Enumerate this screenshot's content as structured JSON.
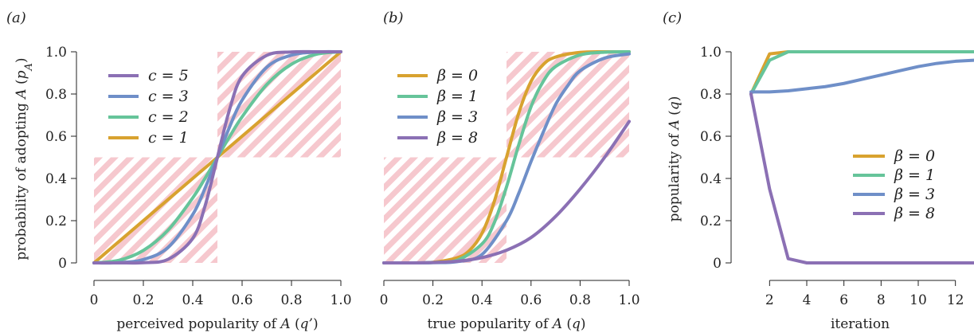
{
  "colors": {
    "c5": "#8b70b4",
    "c3": "#6f8fc8",
    "c2": "#66c49a",
    "c1": "#d8a22f",
    "hatch": "#f2b5bd"
  },
  "chart_data": [
    {
      "panel_label": "(a)",
      "type": "line",
      "xlabel": "perceived popularity of A (q’)",
      "ylabel": "probability of adopting A (p_A)",
      "xlim": [
        0,
        1
      ],
      "ylim": [
        0,
        1
      ],
      "xticks": [
        0,
        0.2,
        0.4,
        0.6,
        0.8,
        1.0
      ],
      "xtick_labels": [
        "0",
        "0.2",
        "0.4",
        "0.6",
        "0.8",
        "1.0"
      ],
      "yticks": [
        0,
        0.2,
        0.4,
        0.6,
        0.8,
        1.0
      ],
      "ytick_labels": [
        "0",
        "0.2",
        "0.4",
        "0.6",
        "0.8",
        "1.0"
      ],
      "legend_position": "top-left",
      "hatched_regions": [
        {
          "x_from": 0.0,
          "x_to": 0.5,
          "y_from": 0.0,
          "y_to": 0.5
        },
        {
          "x_from": 0.5,
          "x_to": 1.0,
          "y_from": 0.5,
          "y_to": 1.0
        }
      ],
      "series": [
        {
          "name": "c = 5",
          "color_key": "c5",
          "x": [
            0,
            0.1,
            0.2,
            0.3,
            0.4,
            0.45,
            0.5,
            0.55,
            0.6,
            0.7,
            0.8,
            0.9,
            1.0
          ],
          "y": [
            0,
            0.0001,
            0.001,
            0.017,
            0.116,
            0.27,
            0.5,
            0.73,
            0.884,
            0.983,
            0.999,
            1.0,
            1.0
          ]
        },
        {
          "name": "c = 3",
          "color_key": "c3",
          "x": [
            0,
            0.1,
            0.2,
            0.3,
            0.4,
            0.45,
            0.5,
            0.55,
            0.6,
            0.7,
            0.8,
            0.9,
            1.0
          ],
          "y": [
            0,
            0.001,
            0.016,
            0.073,
            0.229,
            0.354,
            0.5,
            0.646,
            0.771,
            0.927,
            0.984,
            0.999,
            1.0
          ]
        },
        {
          "name": "c = 2",
          "color_key": "c2",
          "x": [
            0,
            0.1,
            0.2,
            0.3,
            0.4,
            0.45,
            0.5,
            0.55,
            0.6,
            0.7,
            0.8,
            0.9,
            1.0
          ],
          "y": [
            0,
            0.012,
            0.059,
            0.155,
            0.308,
            0.401,
            0.5,
            0.599,
            0.692,
            0.845,
            0.941,
            0.988,
            1.0
          ]
        },
        {
          "name": "c = 1",
          "color_key": "c1",
          "x": [
            0,
            1.0
          ],
          "y": [
            0,
            1.0
          ]
        }
      ]
    },
    {
      "panel_label": "(b)",
      "type": "line",
      "xlabel": "true popularity of A (q)",
      "ylabel": "",
      "xlim": [
        0,
        1
      ],
      "ylim": [
        0,
        1
      ],
      "xticks": [
        0,
        0.2,
        0.4,
        0.6,
        0.8,
        1.0
      ],
      "xtick_labels": [
        "0",
        "0.2",
        "0.4",
        "0.6",
        "0.8",
        "1.0"
      ],
      "legend_position": "top-left",
      "hatched_regions": [
        {
          "x_from": 0.0,
          "x_to": 0.5,
          "y_from": 0.0,
          "y_to": 0.5
        },
        {
          "x_from": 0.5,
          "x_to": 1.0,
          "y_from": 0.5,
          "y_to": 1.0
        }
      ],
      "series": [
        {
          "name": "β = 0",
          "color_key": "c1",
          "x": [
            0,
            0.1,
            0.2,
            0.3,
            0.35,
            0.4,
            0.45,
            0.5,
            0.55,
            0.6,
            0.65,
            0.7,
            0.8,
            0.9,
            1.0
          ],
          "y": [
            0,
            0.0,
            0.003,
            0.025,
            0.06,
            0.14,
            0.29,
            0.5,
            0.71,
            0.86,
            0.94,
            0.975,
            0.997,
            1.0,
            1.0
          ]
        },
        {
          "name": "β = 1",
          "color_key": "c2",
          "x": [
            0,
            0.1,
            0.2,
            0.3,
            0.4,
            0.45,
            0.5,
            0.55,
            0.6,
            0.65,
            0.7,
            0.8,
            0.9,
            1.0
          ],
          "y": [
            0,
            0.0,
            0.002,
            0.013,
            0.09,
            0.19,
            0.36,
            0.56,
            0.74,
            0.86,
            0.93,
            0.985,
            0.998,
            1.0
          ]
        },
        {
          "name": "β = 3",
          "color_key": "c3",
          "x": [
            0,
            0.1,
            0.2,
            0.3,
            0.4,
            0.5,
            0.55,
            0.6,
            0.65,
            0.7,
            0.75,
            0.8,
            0.9,
            1.0
          ],
          "y": [
            0,
            0.0,
            0.001,
            0.006,
            0.04,
            0.2,
            0.33,
            0.48,
            0.62,
            0.75,
            0.84,
            0.91,
            0.97,
            0.99
          ]
        },
        {
          "name": "β = 8",
          "color_key": "c5",
          "x": [
            0,
            0.1,
            0.2,
            0.3,
            0.4,
            0.5,
            0.6,
            0.7,
            0.8,
            0.9,
            1.0
          ],
          "y": [
            0,
            0.0,
            0.002,
            0.008,
            0.025,
            0.06,
            0.12,
            0.22,
            0.35,
            0.5,
            0.67
          ]
        }
      ]
    },
    {
      "panel_label": "(c)",
      "type": "line",
      "xlabel": "iteration",
      "ylabel": "popularity of A (q)",
      "xlim": [
        1,
        13
      ],
      "ylim": [
        0,
        1
      ],
      "xticks": [
        2,
        4,
        6,
        8,
        10,
        12
      ],
      "xtick_labels": [
        "2",
        "4",
        "6",
        "8",
        "10",
        "12"
      ],
      "yticks": [
        0,
        0.2,
        0.4,
        0.6,
        0.8,
        1.0
      ],
      "ytick_labels": [
        "0",
        "0.2",
        "0.4",
        "0.6",
        "0.8",
        "1.0"
      ],
      "legend_position": "center-right",
      "series": [
        {
          "name": "β = 0",
          "color_key": "c1",
          "x": [
            1,
            2,
            3,
            4,
            5,
            6,
            7,
            8,
            9,
            10,
            11,
            12,
            13
          ],
          "y": [
            0.8,
            0.99,
            1.0,
            1.0,
            1.0,
            1.0,
            1.0,
            1.0,
            1.0,
            1.0,
            1.0,
            1.0,
            1.0
          ]
        },
        {
          "name": "β = 1",
          "color_key": "c2",
          "x": [
            1,
            2,
            3,
            4,
            5,
            6,
            7,
            8,
            9,
            10,
            11,
            12,
            13
          ],
          "y": [
            0.8,
            0.96,
            1.0,
            1.0,
            1.0,
            1.0,
            1.0,
            1.0,
            1.0,
            1.0,
            1.0,
            1.0,
            1.0
          ]
        },
        {
          "name": "β = 3",
          "color_key": "c3",
          "x": [
            1,
            2,
            3,
            4,
            5,
            6,
            7,
            8,
            9,
            10,
            11,
            12,
            13
          ],
          "y": [
            0.81,
            0.81,
            0.815,
            0.825,
            0.835,
            0.85,
            0.87,
            0.89,
            0.91,
            0.93,
            0.945,
            0.955,
            0.96
          ]
        },
        {
          "name": "β = 8",
          "color_key": "c5",
          "x": [
            1,
            2,
            3,
            4,
            5,
            6,
            7,
            8,
            9,
            10,
            11,
            12,
            13
          ],
          "y": [
            0.8,
            0.35,
            0.02,
            0.0,
            0.0,
            0.0,
            0.0,
            0.0,
            0.0,
            0.0,
            0.0,
            0.0,
            0.0
          ]
        }
      ]
    }
  ]
}
